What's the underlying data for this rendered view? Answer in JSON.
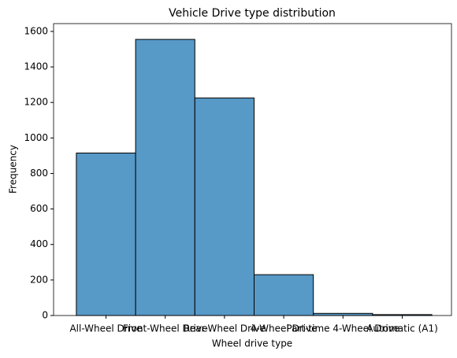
{
  "chart_data": {
    "type": "bar",
    "title": "Vehicle Drive type distribution",
    "xlabel": "Wheel drive type",
    "ylabel": "Frequency",
    "categories": [
      "All-Wheel Drive",
      "Front-Wheel Drive",
      "Rear-Wheel Drive",
      "4-Wheel Drive",
      "Part-time 4-Wheel Drive",
      "Automatic (A1)"
    ],
    "values": [
      915,
      1555,
      1225,
      230,
      12,
      5
    ],
    "color": "#5799c7",
    "ylim": [
      0,
      1644
    ],
    "yticks": [
      0,
      200,
      400,
      600,
      800,
      1000,
      1200,
      1400,
      1600
    ],
    "grid": false
  }
}
